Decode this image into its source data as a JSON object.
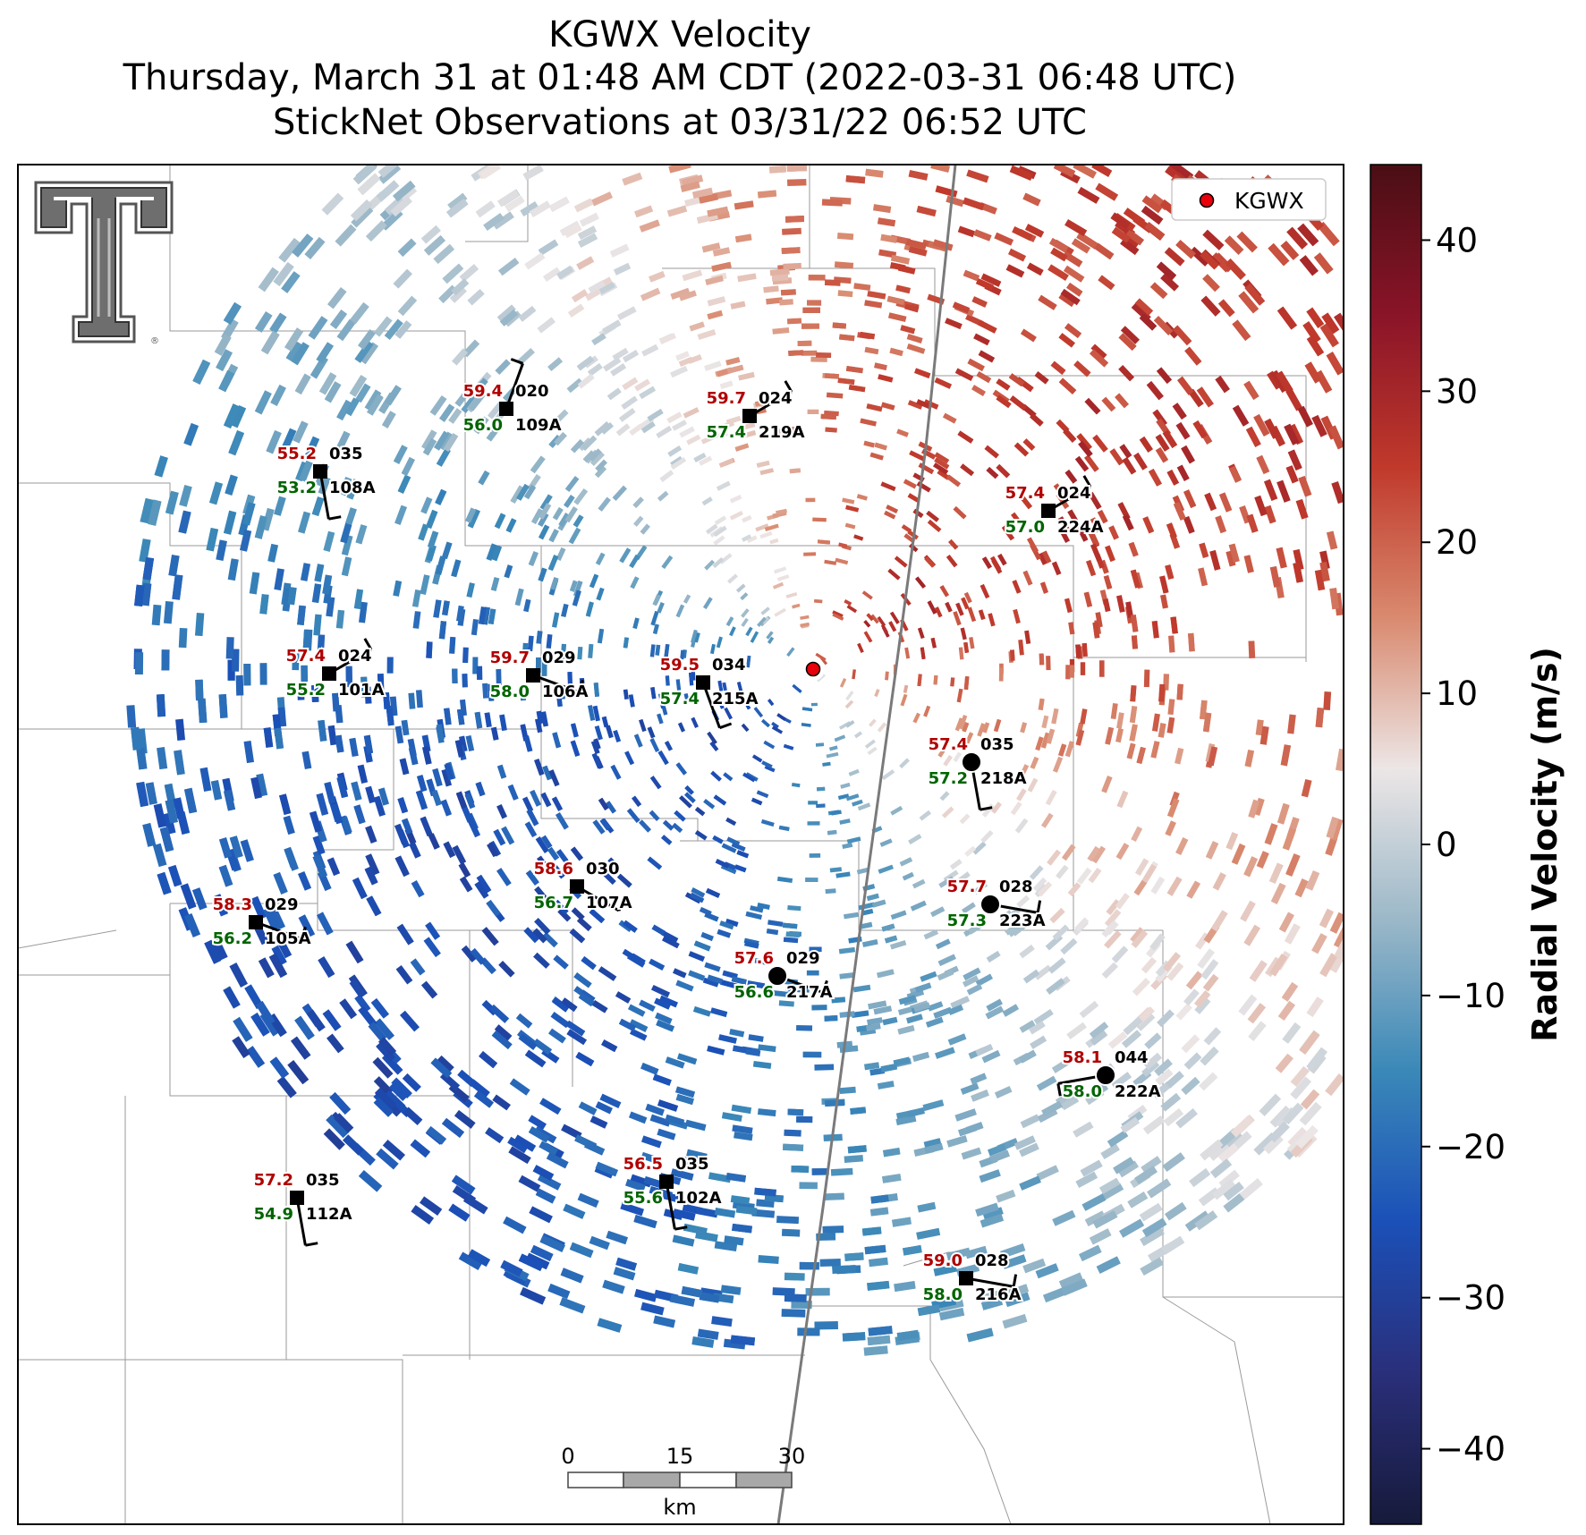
{
  "title": {
    "line1": "KGWX Velocity",
    "line2": "Thursday, March 31 at 01:48 AM CDT (2022-03-31 06:48 UTC)",
    "line3": "StickNet Observations at 03/31/22 06:52 UTC"
  },
  "legend": {
    "label": "KGWX",
    "placement": "top-right",
    "marker_color": "#e8000b"
  },
  "radar": {
    "name": "KGWX"
  },
  "colorbar": {
    "label": "Radial Velocity (m/s)",
    "range": [
      -45,
      45
    ],
    "ticks": [
      "40",
      "30",
      "20",
      "10",
      "0",
      "−10",
      "−20",
      "−30",
      "−40"
    ],
    "colors": [
      "#4a0e14",
      "#8a1428",
      "#c0392b",
      "#d98a6f",
      "#ece6e6",
      "#9bb8c8",
      "#3a88b8",
      "#1b50b8",
      "#2a2f7a",
      "#161a3a"
    ]
  },
  "scalebar": {
    "ticks": [
      "0",
      "15",
      "30"
    ],
    "unit": "km"
  },
  "station_colors": {
    "temperature": "#b00000",
    "dewpoint": "#006400",
    "id": "#000000"
  },
  "stations": [
    {
      "id": "109A",
      "temp": "59.4",
      "dew": "56.0",
      "dir": "020",
      "marker": "square"
    },
    {
      "id": "219A",
      "temp": "59.7",
      "dew": "57.4",
      "dir": "024",
      "marker": "square"
    },
    {
      "id": "108A",
      "temp": "55.2",
      "dew": "53.2",
      "dir": "035",
      "marker": "square"
    },
    {
      "id": "224A",
      "temp": "57.4",
      "dew": "57.0",
      "dir": "024",
      "marker": "square"
    },
    {
      "id": "101A",
      "temp": "57.4",
      "dew": "55.2",
      "dir": "024",
      "marker": "square"
    },
    {
      "id": "106A",
      "temp": "59.7",
      "dew": "58.0",
      "dir": "029",
      "marker": "square"
    },
    {
      "id": "215A",
      "temp": "59.5",
      "dew": "57.4",
      "dir": "034",
      "marker": "square"
    },
    {
      "id": "218A",
      "temp": "57.4",
      "dew": "57.2",
      "dir": "035",
      "marker": "circle"
    },
    {
      "id": "107A",
      "temp": "58.6",
      "dew": "56.7",
      "dir": "030",
      "marker": "square"
    },
    {
      "id": "223A",
      "temp": "57.7",
      "dew": "57.3",
      "dir": "028",
      "marker": "circle"
    },
    {
      "id": "105A",
      "temp": "58.3",
      "dew": "56.2",
      "dir": "029",
      "marker": "square"
    },
    {
      "id": "217A",
      "temp": "57.6",
      "dew": "56.6",
      "dir": "029",
      "marker": "circle"
    },
    {
      "id": "222A",
      "temp": "58.1",
      "dew": "58.0",
      "dir": "044",
      "marker": "circle"
    },
    {
      "id": "112A",
      "temp": "57.2",
      "dew": "54.9",
      "dir": "035",
      "marker": "square"
    },
    {
      "id": "102A",
      "temp": "56.5",
      "dew": "55.6",
      "dir": "035",
      "marker": "square"
    },
    {
      "id": "216A",
      "temp": "59.0",
      "dew": "58.0",
      "dir": "028",
      "marker": "square"
    }
  ]
}
